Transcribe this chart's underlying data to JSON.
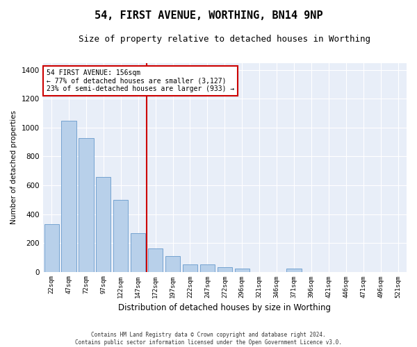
{
  "title": "54, FIRST AVENUE, WORTHING, BN14 9NP",
  "subtitle": "Size of property relative to detached houses in Worthing",
  "xlabel": "Distribution of detached houses by size in Worthing",
  "ylabel": "Number of detached properties",
  "categories": [
    "22sqm",
    "47sqm",
    "72sqm",
    "97sqm",
    "122sqm",
    "147sqm",
    "172sqm",
    "197sqm",
    "222sqm",
    "247sqm",
    "272sqm",
    "296sqm",
    "321sqm",
    "346sqm",
    "371sqm",
    "396sqm",
    "421sqm",
    "446sqm",
    "471sqm",
    "496sqm",
    "521sqm"
  ],
  "values": [
    330,
    1050,
    930,
    660,
    500,
    270,
    160,
    110,
    50,
    50,
    30,
    20,
    0,
    0,
    20,
    0,
    0,
    0,
    0,
    0,
    0
  ],
  "bar_color": "#b8d0ea",
  "bar_edge_color": "#6699cc",
  "vline_color": "#cc0000",
  "annotation_text": "54 FIRST AVENUE: 156sqm\n← 77% of detached houses are smaller (3,127)\n23% of semi-detached houses are larger (933) →",
  "annotation_box_color": "#cc0000",
  "ylim": [
    0,
    1450
  ],
  "yticks": [
    0,
    200,
    400,
    600,
    800,
    1000,
    1200,
    1400
  ],
  "footer_line1": "Contains HM Land Registry data © Crown copyright and database right 2024.",
  "footer_line2": "Contains public sector information licensed under the Open Government Licence v3.0.",
  "bg_color": "#e8eef8",
  "grid_color": "#ffffff",
  "fig_bg_color": "#ffffff",
  "title_fontsize": 11,
  "subtitle_fontsize": 9,
  "bar_width": 0.85,
  "vline_x_index": 6
}
